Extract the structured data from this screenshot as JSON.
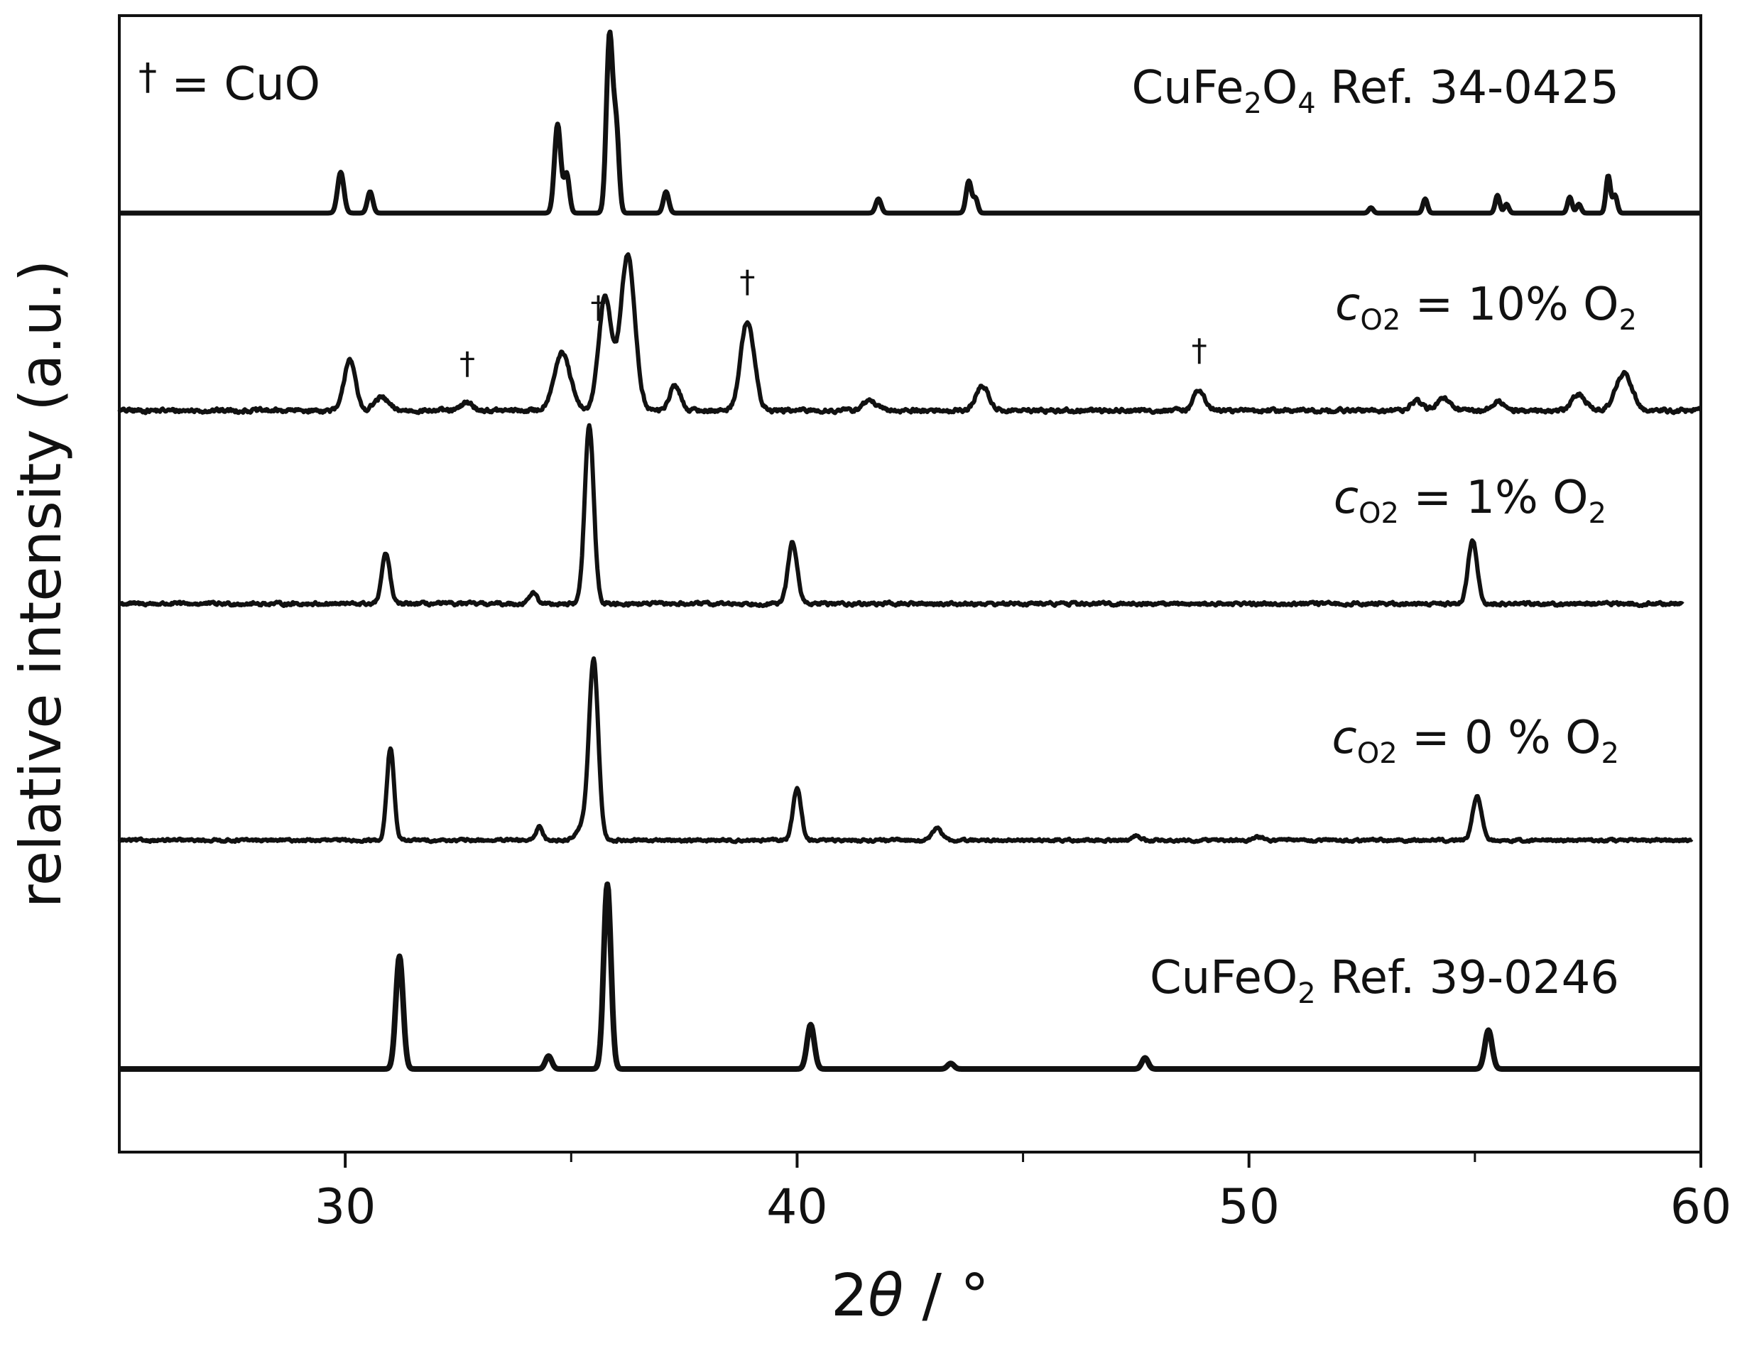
{
  "chart_data": {
    "type": "line",
    "xlabel_prefix": "2",
    "xlabel_symbol": "θ",
    "xlabel_unit": " / °",
    "ylabel": "relative intensity (a.u.)",
    "xlim": [
      25,
      60
    ],
    "xticks": [
      30,
      40,
      50,
      60
    ],
    "xticks_minor": [
      35,
      45,
      55
    ],
    "yticks": [],
    "grid": false,
    "legend_note": {
      "symbol": "†",
      "text": " = CuO"
    },
    "series": [
      {
        "label_base": "CuFe",
        "label_sub1": "2",
        "label_mid": "O",
        "label_sub2": "4",
        "label_tail": " Ref. 34-0425",
        "noise": 0,
        "x_start": 25,
        "x_end": 60,
        "peaks": [
          [
            29.9,
            0.23,
            0.07
          ],
          [
            30.55,
            0.12,
            0.06
          ],
          [
            34.7,
            0.5,
            0.07
          ],
          [
            34.9,
            0.22,
            0.06
          ],
          [
            35.85,
            1.0,
            0.07
          ],
          [
            36.0,
            0.45,
            0.06
          ],
          [
            37.1,
            0.12,
            0.06
          ],
          [
            41.8,
            0.08,
            0.06
          ],
          [
            43.8,
            0.18,
            0.06
          ],
          [
            43.95,
            0.08,
            0.05
          ],
          [
            52.7,
            0.03,
            0.05
          ],
          [
            53.9,
            0.08,
            0.05
          ],
          [
            55.5,
            0.1,
            0.05
          ],
          [
            55.7,
            0.05,
            0.05
          ],
          [
            57.1,
            0.09,
            0.05
          ],
          [
            57.3,
            0.05,
            0.05
          ],
          [
            57.95,
            0.21,
            0.05
          ],
          [
            58.1,
            0.1,
            0.05
          ]
        ]
      },
      {
        "label_var": "c",
        "label_var_sub": "O2",
        "label_tail": " = 10% O",
        "label_tail_sub": "2",
        "noise": 0.02,
        "x_start": 25,
        "x_end": 60,
        "peaks": [
          [
            30.1,
            0.32,
            0.12
          ],
          [
            30.8,
            0.08,
            0.15
          ],
          [
            32.7,
            0.05,
            0.12
          ],
          [
            34.8,
            0.35,
            0.18
          ],
          [
            35.75,
            0.7,
            0.14
          ],
          [
            36.25,
            0.95,
            0.16
          ],
          [
            37.3,
            0.15,
            0.12
          ],
          [
            38.9,
            0.55,
            0.15
          ],
          [
            41.6,
            0.06,
            0.15
          ],
          [
            44.1,
            0.15,
            0.14
          ],
          [
            48.9,
            0.13,
            0.12
          ],
          [
            53.7,
            0.06,
            0.12
          ],
          [
            54.3,
            0.07,
            0.15
          ],
          [
            55.5,
            0.06,
            0.12
          ],
          [
            57.3,
            0.1,
            0.15
          ],
          [
            58.3,
            0.23,
            0.18
          ]
        ],
        "markers_x": [
          32.7,
          35.6,
          38.9,
          48.9
        ]
      },
      {
        "label_var": "c",
        "label_var_sub": "O2",
        "label_tail": " = 1% O",
        "label_tail_sub": "2",
        "noise": 0.015,
        "x_start": 25,
        "x_end": 59.6,
        "peaks": [
          [
            30.9,
            0.28,
            0.09
          ],
          [
            34.15,
            0.06,
            0.09
          ],
          [
            35.4,
            1.0,
            0.1
          ],
          [
            39.9,
            0.35,
            0.1
          ],
          [
            54.95,
            0.36,
            0.1
          ]
        ]
      },
      {
        "label_var": "c",
        "label_var_sub": "O2",
        "label_tail": " = 0 % O",
        "label_tail_sub": "2",
        "noise": 0.012,
        "x_start": 25,
        "x_end": 59.8,
        "peaks": [
          [
            31.0,
            0.53,
            0.08
          ],
          [
            34.3,
            0.08,
            0.07
          ],
          [
            35.3,
            0.1,
            0.15
          ],
          [
            35.5,
            1.0,
            0.1
          ],
          [
            40.0,
            0.3,
            0.09
          ],
          [
            43.1,
            0.07,
            0.1
          ],
          [
            47.5,
            0.03,
            0.08
          ],
          [
            50.2,
            0.02,
            0.1
          ],
          [
            55.05,
            0.25,
            0.1
          ]
        ]
      },
      {
        "label_base": "CuFeO",
        "label_sub1": "2",
        "label_tail": " Ref. 39-0246",
        "noise": 0,
        "x_start": 25,
        "x_end": 60,
        "peaks": [
          [
            31.2,
            0.61,
            0.08
          ],
          [
            34.5,
            0.07,
            0.07
          ],
          [
            35.8,
            1.0,
            0.08
          ],
          [
            40.3,
            0.24,
            0.08
          ],
          [
            43.4,
            0.03,
            0.07
          ],
          [
            47.7,
            0.06,
            0.07
          ],
          [
            55.3,
            0.21,
            0.08
          ]
        ]
      }
    ]
  }
}
